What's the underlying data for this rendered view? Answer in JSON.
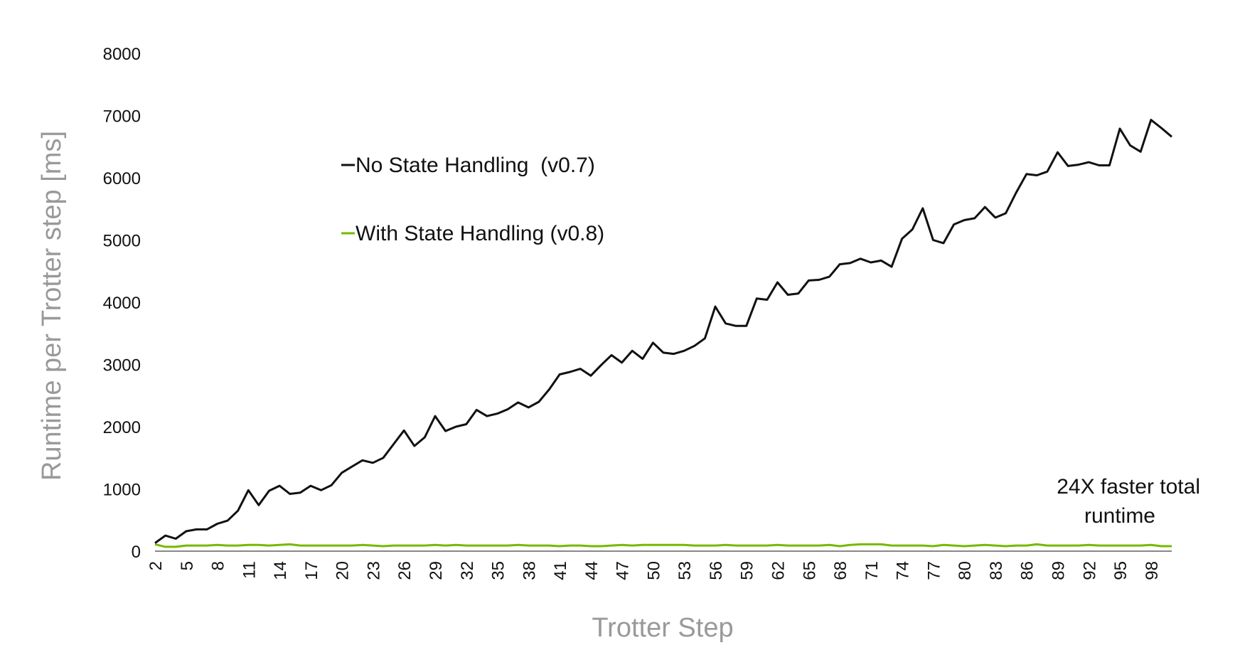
{
  "chart_data": {
    "type": "line",
    "xlabel": "Trotter Step",
    "ylabel": "Runtime per Trotter step [ms]",
    "ylim": [
      0,
      8000
    ],
    "yticks": [
      0,
      1000,
      2000,
      3000,
      4000,
      5000,
      6000,
      7000,
      8000
    ],
    "xlim": [
      2,
      100
    ],
    "xticks": [
      2,
      5,
      8,
      11,
      14,
      17,
      20,
      23,
      26,
      29,
      32,
      35,
      38,
      41,
      44,
      47,
      50,
      53,
      56,
      59,
      62,
      65,
      68,
      71,
      74,
      77,
      80,
      83,
      86,
      89,
      92,
      95,
      98
    ],
    "grid": false,
    "legend_position": "upper-left",
    "annotation": [
      "24X faster total",
      "runtime"
    ],
    "series": [
      {
        "name": "No State Handling  (v0.7)",
        "color": "#111111",
        "x": [
          2,
          3,
          4,
          5,
          6,
          7,
          8,
          9,
          10,
          11,
          12,
          13,
          14,
          15,
          16,
          17,
          18,
          19,
          20,
          21,
          22,
          23,
          24,
          25,
          26,
          27,
          28,
          29,
          30,
          31,
          32,
          33,
          34,
          35,
          36,
          37,
          38,
          39,
          40,
          41,
          42,
          43,
          44,
          45,
          46,
          47,
          48,
          49,
          50,
          51,
          52,
          53,
          54,
          55,
          56,
          57,
          58,
          59,
          60,
          61,
          62,
          63,
          64,
          65,
          66,
          67,
          68,
          69,
          70,
          71,
          72,
          73,
          74,
          75,
          76,
          77,
          78,
          79,
          80,
          81,
          82,
          83,
          84,
          85,
          86,
          87,
          88,
          89,
          90,
          91,
          92,
          93,
          94,
          95,
          96,
          97,
          98,
          99,
          100
        ],
        "values": [
          130,
          250,
          200,
          320,
          350,
          350,
          440,
          490,
          650,
          980,
          740,
          970,
          1050,
          920,
          940,
          1050,
          980,
          1060,
          1260,
          1360,
          1460,
          1420,
          1500,
          1720,
          1940,
          1690,
          1830,
          2170,
          1930,
          2000,
          2040,
          2270,
          2170,
          2210,
          2280,
          2390,
          2310,
          2400,
          2600,
          2840,
          2880,
          2930,
          2820,
          2990,
          3150,
          3030,
          3220,
          3090,
          3350,
          3190,
          3170,
          3220,
          3300,
          3420,
          3930,
          3660,
          3620,
          3620,
          4060,
          4040,
          4320,
          4120,
          4140,
          4350,
          4360,
          4410,
          4610,
          4630,
          4700,
          4640,
          4670,
          4570,
          5020,
          5170,
          5510,
          5000,
          4950,
          5250,
          5320,
          5350,
          5530,
          5360,
          5430,
          5760,
          6060,
          6040,
          6100,
          6410,
          6190,
          6210,
          6250,
          6200,
          6200,
          6790,
          6520,
          6420,
          6930,
          6800,
          6660
        ]
      },
      {
        "name": "With State Handling (v0.8)",
        "color": "#76b900",
        "x": [
          2,
          3,
          4,
          5,
          6,
          7,
          8,
          9,
          10,
          11,
          12,
          13,
          14,
          15,
          16,
          17,
          18,
          19,
          20,
          21,
          22,
          23,
          24,
          25,
          26,
          27,
          28,
          29,
          30,
          31,
          32,
          33,
          34,
          35,
          36,
          37,
          38,
          39,
          40,
          41,
          42,
          43,
          44,
          45,
          46,
          47,
          48,
          49,
          50,
          51,
          52,
          53,
          54,
          55,
          56,
          57,
          58,
          59,
          60,
          61,
          62,
          63,
          64,
          65,
          66,
          67,
          68,
          69,
          70,
          71,
          72,
          73,
          74,
          75,
          76,
          77,
          78,
          79,
          80,
          81,
          82,
          83,
          84,
          85,
          86,
          87,
          88,
          89,
          90,
          91,
          92,
          93,
          94,
          95,
          96,
          97,
          98,
          99,
          100
        ],
        "values": [
          110,
          70,
          70,
          90,
          90,
          90,
          100,
          90,
          90,
          100,
          100,
          90,
          100,
          110,
          90,
          90,
          90,
          90,
          90,
          90,
          100,
          90,
          80,
          90,
          90,
          90,
          90,
          100,
          90,
          100,
          90,
          90,
          90,
          90,
          90,
          100,
          90,
          90,
          90,
          80,
          90,
          90,
          80,
          80,
          90,
          100,
          90,
          100,
          100,
          100,
          100,
          100,
          90,
          90,
          90,
          100,
          90,
          90,
          90,
          90,
          100,
          90,
          90,
          90,
          90,
          100,
          80,
          100,
          110,
          110,
          110,
          90,
          90,
          90,
          90,
          80,
          100,
          90,
          80,
          90,
          100,
          90,
          80,
          90,
          90,
          110,
          90,
          90,
          90,
          90,
          100,
          90,
          90,
          90,
          90,
          90,
          100,
          80,
          80
        ]
      }
    ]
  }
}
